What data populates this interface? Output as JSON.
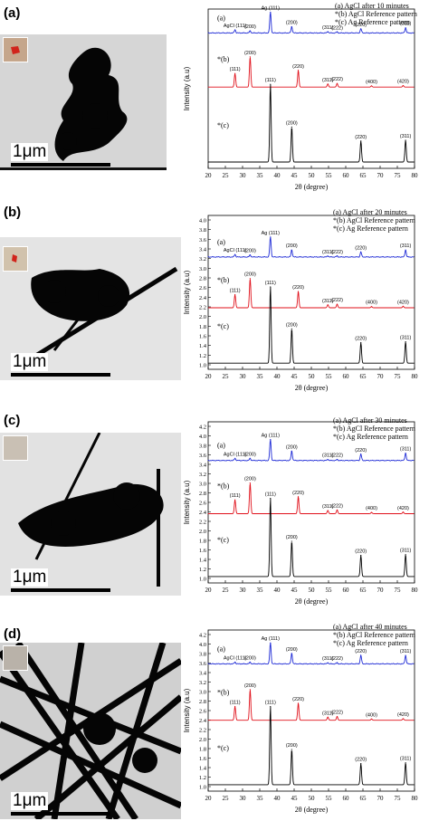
{
  "panels": [
    {
      "letter": "(a)",
      "scale_label": "1μm",
      "legend": [
        "(a) AgCl after 10 minutes",
        "*(b) AgCl  Reference pattern",
        "*(c) Ag Reference pattern"
      ],
      "show_yticks": false,
      "yticks": [],
      "ylabel": "Intensity (a.u)",
      "xlabel": "2θ (degree)",
      "xticks": [
        20,
        25,
        30,
        35,
        40,
        45,
        50,
        55,
        60,
        65,
        70,
        75,
        80
      ],
      "curve_labels": [
        "(a)",
        "*(b)",
        "*(c)"
      ],
      "peak_labels_a": [
        {
          "x": 27.8,
          "t": "AgCl (111)"
        },
        {
          "x": 32.2,
          "t": "(200)"
        },
        {
          "x": 38.1,
          "t": "Ag (111)"
        },
        {
          "x": 44.3,
          "t": "(200)"
        },
        {
          "x": 54.8,
          "t": "(311)"
        },
        {
          "x": 57.5,
          "t": "(222)"
        },
        {
          "x": 64.4,
          "t": "(220)"
        },
        {
          "x": 77.4,
          "t": "(311)"
        }
      ],
      "peak_labels_b": [
        {
          "x": 27.8,
          "t": "(111)"
        },
        {
          "x": 32.2,
          "t": "(200)"
        },
        {
          "x": 46.2,
          "t": "(220)"
        },
        {
          "x": 54.8,
          "t": "(311)"
        },
        {
          "x": 57.5,
          "t": "(222)"
        },
        {
          "x": 67.5,
          "t": "(400)"
        },
        {
          "x": 76.7,
          "t": "(420)"
        }
      ],
      "peak_labels_c": [
        {
          "x": 38.1,
          "t": "(111)"
        },
        {
          "x": 44.3,
          "t": "(200)"
        },
        {
          "x": 64.4,
          "t": "(220)"
        },
        {
          "x": 77.4,
          "t": "(311)"
        }
      ]
    },
    {
      "letter": "(b)",
      "scale_label": "1μm",
      "legend": [
        "(a) AgCl after 20 minutes",
        "*(b) AgCl  Reference pattern",
        "*(c) Ag Reference pattern"
      ],
      "show_yticks": true,
      "yticks": [
        "1.0",
        "1.2",
        "1.4",
        "1.6",
        "1.8",
        "2.0",
        "2.2",
        "2.4",
        "2.6",
        "2.8",
        "3.0",
        "3.2",
        "3.4",
        "3.6",
        "3.8",
        "4.0"
      ],
      "ylabel": "Intensity (a.u)",
      "xlabel": "2θ (degree)",
      "xticks": [
        20,
        25,
        30,
        35,
        40,
        45,
        50,
        55,
        60,
        65,
        70,
        75,
        80
      ],
      "curve_labels": [
        "(a)",
        "*(b)",
        "*(c)"
      ],
      "peak_labels_a": [
        {
          "x": 27.8,
          "t": "AgCl (111)"
        },
        {
          "x": 32.2,
          "t": "(200)"
        },
        {
          "x": 38.1,
          "t": "Ag (111)"
        },
        {
          "x": 44.3,
          "t": "(200)"
        },
        {
          "x": 54.8,
          "t": "(311)"
        },
        {
          "x": 57.5,
          "t": "(222)"
        },
        {
          "x": 64.4,
          "t": "(220)"
        },
        {
          "x": 77.4,
          "t": "(311)"
        }
      ],
      "peak_labels_b": [
        {
          "x": 27.8,
          "t": "(111)"
        },
        {
          "x": 32.2,
          "t": "(200)"
        },
        {
          "x": 46.2,
          "t": "(220)"
        },
        {
          "x": 54.8,
          "t": "(311)"
        },
        {
          "x": 57.5,
          "t": "(222)"
        },
        {
          "x": 67.5,
          "t": "(400)"
        },
        {
          "x": 76.7,
          "t": "(420)"
        }
      ],
      "peak_labels_c": [
        {
          "x": 38.1,
          "t": "(111)"
        },
        {
          "x": 44.3,
          "t": "(200)"
        },
        {
          "x": 64.4,
          "t": "(220)"
        },
        {
          "x": 77.4,
          "t": "(311)"
        }
      ]
    },
    {
      "letter": "(c)",
      "scale_label": "1μm",
      "legend": [
        "(a) AgCl after 30 minutes",
        "*(b) AgCl  Reference pattern",
        "*(c) Ag Reference pattern"
      ],
      "show_yticks": true,
      "yticks": [
        "1.0",
        "1.2",
        "1.4",
        "1.6",
        "1.8",
        "2.0",
        "2.2",
        "2.4",
        "2.6",
        "2.8",
        "3.0",
        "3.2",
        "3.4",
        "3.6",
        "3.8",
        "4.0",
        "4.2"
      ],
      "ylabel": "Intensity (a.u)",
      "xlabel": "2θ (degree)",
      "xticks": [
        20,
        25,
        30,
        35,
        40,
        45,
        50,
        55,
        60,
        65,
        70,
        75,
        80
      ],
      "curve_labels": [
        "(a)",
        "*(b)",
        "*(c)"
      ],
      "peak_labels_a": [
        {
          "x": 27.8,
          "t": "AgCl (111)"
        },
        {
          "x": 32.2,
          "t": "(200)"
        },
        {
          "x": 38.1,
          "t": "Ag (111)"
        },
        {
          "x": 44.3,
          "t": "(200)"
        },
        {
          "x": 54.8,
          "t": "(311)"
        },
        {
          "x": 57.5,
          "t": "(222)"
        },
        {
          "x": 64.4,
          "t": "(220)"
        },
        {
          "x": 77.4,
          "t": "(311)"
        }
      ],
      "peak_labels_b": [
        {
          "x": 27.8,
          "t": "(111)"
        },
        {
          "x": 32.2,
          "t": "(200)"
        },
        {
          "x": 46.2,
          "t": "(220)"
        },
        {
          "x": 54.8,
          "t": "(311)"
        },
        {
          "x": 57.5,
          "t": "(222)"
        },
        {
          "x": 67.5,
          "t": "(400)"
        },
        {
          "x": 76.7,
          "t": "(420)"
        }
      ],
      "peak_labels_c": [
        {
          "x": 38.1,
          "t": "(111)"
        },
        {
          "x": 44.3,
          "t": "(200)"
        },
        {
          "x": 64.4,
          "t": "(220)"
        },
        {
          "x": 77.4,
          "t": "(311)"
        }
      ]
    },
    {
      "letter": "(d)",
      "scale_label": "1μm",
      "legend": [
        "(a) AgCl after 40 minutes",
        "*(b) AgCl  Reference pattern",
        "*(c) Ag Reference pattern"
      ],
      "show_yticks": true,
      "yticks": [
        "1.0",
        "1.2",
        "1.4",
        "1.6",
        "1.8",
        "2.0",
        "2.2",
        "2.4",
        "2.6",
        "2.8",
        "3.0",
        "3.2",
        "3.4",
        "3.6",
        "3.8",
        "4.0",
        "4.2"
      ],
      "ylabel": "Intensity (a.u)",
      "xlabel": "2θ (degree)",
      "xticks": [
        20,
        25,
        30,
        35,
        40,
        45,
        50,
        55,
        60,
        65,
        70,
        75,
        80
      ],
      "curve_labels": [
        "(a)",
        "*(b)",
        "*(c)"
      ],
      "peak_labels_a": [
        {
          "x": 27.8,
          "t": "AgCl (111)"
        },
        {
          "x": 32.2,
          "t": "(200)"
        },
        {
          "x": 38.1,
          "t": "Ag (111)"
        },
        {
          "x": 44.3,
          "t": "(200)"
        },
        {
          "x": 54.8,
          "t": "(311)"
        },
        {
          "x": 57.5,
          "t": "(222)"
        },
        {
          "x": 64.4,
          "t": "(220)"
        },
        {
          "x": 77.4,
          "t": "(311)"
        }
      ],
      "peak_labels_b": [
        {
          "x": 27.8,
          "t": "(111)"
        },
        {
          "x": 32.2,
          "t": "(200)"
        },
        {
          "x": 46.2,
          "t": "(220)"
        },
        {
          "x": 54.8,
          "t": "(311)"
        },
        {
          "x": 57.5,
          "t": "(222)"
        },
        {
          "x": 67.5,
          "t": "(400)"
        },
        {
          "x": 76.7,
          "t": "(420)"
        }
      ],
      "peak_labels_c": [
        {
          "x": 38.1,
          "t": "(111)"
        },
        {
          "x": 44.3,
          "t": "(200)"
        },
        {
          "x": 64.4,
          "t": "(220)"
        },
        {
          "x": 77.4,
          "t": "(311)"
        }
      ]
    }
  ],
  "chart_data": [
    {
      "type": "line",
      "series": [
        {
          "name": "(a)",
          "color": "#1f2bd6",
          "peaks": [
            [
              27.8,
              0.15
            ],
            [
              32.2,
              0.1
            ],
            [
              38.1,
              1.0
            ],
            [
              44.3,
              0.3
            ],
            [
              54.8,
              0.06
            ],
            [
              57.5,
              0.05
            ],
            [
              64.4,
              0.2
            ],
            [
              77.4,
              0.25
            ]
          ]
        },
        {
          "name": "*(b)",
          "color": "#e0101a",
          "peaks": [
            [
              27.8,
              0.45
            ],
            [
              32.2,
              1.0
            ],
            [
              46.2,
              0.55
            ],
            [
              54.8,
              0.1
            ],
            [
              57.5,
              0.12
            ],
            [
              67.5,
              0.04
            ],
            [
              76.7,
              0.05
            ]
          ]
        },
        {
          "name": "*(c)",
          "color": "#000000",
          "peaks": [
            [
              38.1,
              1.0
            ],
            [
              44.3,
              0.45
            ],
            [
              64.4,
              0.27
            ],
            [
              77.4,
              0.28
            ]
          ]
        }
      ],
      "xlim": [
        20,
        80
      ],
      "xlabel": "2θ (degree)",
      "ylabel": "Intensity (a.u)",
      "legend": "top-right"
    },
    {
      "type": "line",
      "series": [
        {
          "name": "(a)",
          "color": "#1f2bd6",
          "peaks": [
            [
              27.8,
              0.12
            ],
            [
              32.2,
              0.1
            ],
            [
              38.1,
              1.0
            ],
            [
              44.3,
              0.35
            ],
            [
              54.8,
              0.05
            ],
            [
              57.5,
              0.05
            ],
            [
              64.4,
              0.25
            ],
            [
              77.4,
              0.35
            ]
          ]
        },
        {
          "name": "*(b)",
          "color": "#e0101a",
          "peaks": [
            [
              27.8,
              0.45
            ],
            [
              32.2,
              1.0
            ],
            [
              46.2,
              0.55
            ],
            [
              54.8,
              0.1
            ],
            [
              57.5,
              0.12
            ],
            [
              67.5,
              0.04
            ],
            [
              76.7,
              0.05
            ]
          ]
        },
        {
          "name": "*(c)",
          "color": "#000000",
          "peaks": [
            [
              38.1,
              1.0
            ],
            [
              44.3,
              0.45
            ],
            [
              64.4,
              0.27
            ],
            [
              77.4,
              0.28
            ]
          ]
        }
      ],
      "xlim": [
        20,
        80
      ],
      "ylim": [
        1.0,
        4.0
      ],
      "xlabel": "2θ (degree)",
      "ylabel": "Intensity (a.u)",
      "legend": "top-right"
    },
    {
      "type": "line",
      "series": [
        {
          "name": "(a)",
          "color": "#1f2bd6",
          "peaks": [
            [
              27.8,
              0.1
            ],
            [
              32.2,
              0.1
            ],
            [
              38.1,
              1.0
            ],
            [
              44.3,
              0.45
            ],
            [
              54.8,
              0.05
            ],
            [
              57.5,
              0.05
            ],
            [
              64.4,
              0.3
            ],
            [
              77.4,
              0.35
            ]
          ]
        },
        {
          "name": "*(b)",
          "color": "#e0101a",
          "peaks": [
            [
              27.8,
              0.45
            ],
            [
              32.2,
              1.0
            ],
            [
              46.2,
              0.55
            ],
            [
              54.8,
              0.1
            ],
            [
              57.5,
              0.12
            ],
            [
              67.5,
              0.04
            ],
            [
              76.7,
              0.05
            ]
          ]
        },
        {
          "name": "*(c)",
          "color": "#000000",
          "peaks": [
            [
              38.1,
              1.0
            ],
            [
              44.3,
              0.45
            ],
            [
              64.4,
              0.27
            ],
            [
              77.4,
              0.28
            ]
          ]
        }
      ],
      "xlim": [
        20,
        80
      ],
      "ylim": [
        1.0,
        4.2
      ],
      "xlabel": "2θ (degree)",
      "ylabel": "Intensity (a.u)",
      "legend": "top-right"
    },
    {
      "type": "line",
      "series": [
        {
          "name": "(a)",
          "color": "#1f2bd6",
          "peaks": [
            [
              27.8,
              0.08
            ],
            [
              32.2,
              0.08
            ],
            [
              38.1,
              1.0
            ],
            [
              44.3,
              0.5
            ],
            [
              54.8,
              0.05
            ],
            [
              57.5,
              0.05
            ],
            [
              64.4,
              0.4
            ],
            [
              77.4,
              0.4
            ]
          ]
        },
        {
          "name": "*(b)",
          "color": "#e0101a",
          "peaks": [
            [
              27.8,
              0.45
            ],
            [
              32.2,
              1.0
            ],
            [
              46.2,
              0.55
            ],
            [
              54.8,
              0.1
            ],
            [
              57.5,
              0.12
            ],
            [
              67.5,
              0.04
            ],
            [
              76.7,
              0.05
            ]
          ]
        },
        {
          "name": "*(c)",
          "color": "#000000",
          "peaks": [
            [
              38.1,
              1.0
            ],
            [
              44.3,
              0.45
            ],
            [
              64.4,
              0.27
            ],
            [
              77.4,
              0.28
            ]
          ]
        }
      ],
      "xlim": [
        20,
        80
      ],
      "ylim": [
        1.0,
        4.2
      ],
      "xlabel": "2θ (degree)",
      "ylabel": "Intensity (a.u)",
      "legend": "top-right"
    }
  ]
}
